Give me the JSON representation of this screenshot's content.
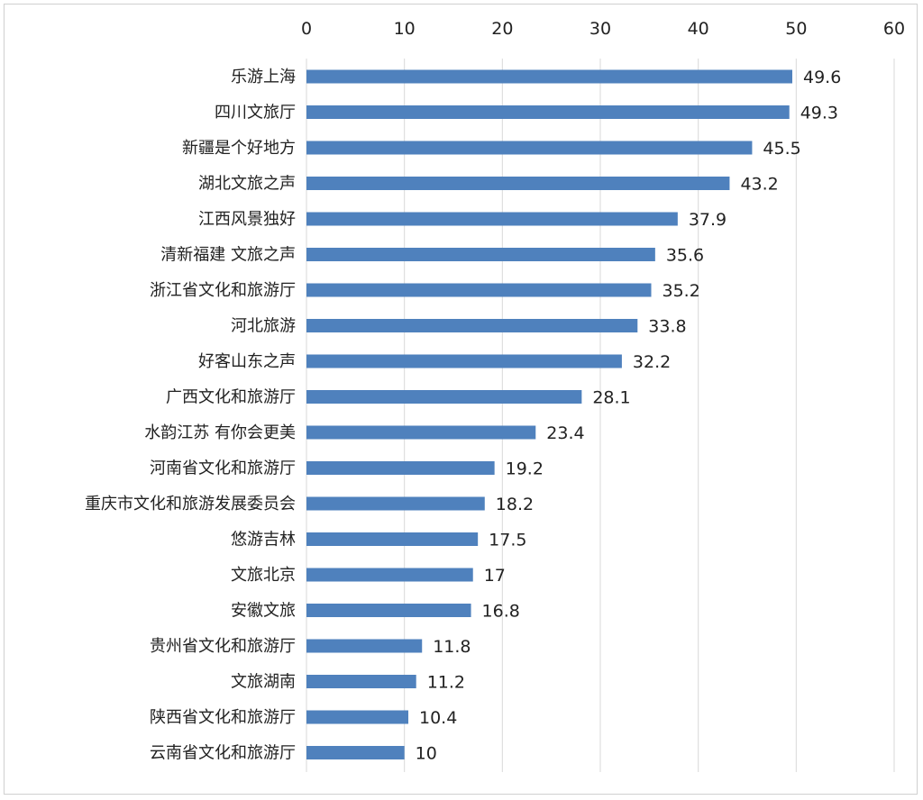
{
  "chart_data": {
    "type": "bar",
    "orientation": "horizontal",
    "title": "",
    "xlabel": "",
    "ylabel": "",
    "xlim": [
      0,
      60
    ],
    "x_ticks": [
      0,
      10,
      20,
      30,
      40,
      50,
      60
    ],
    "x_axis_position": "top",
    "grid": true,
    "legend": "none",
    "bar_color": "#4f81bd",
    "categories": [
      "乐游上海",
      "四川文旅厅",
      "新疆是个好地方",
      "湖北文旅之声",
      "江西风景独好",
      "清新福建 文旅之声",
      "浙江省文化和旅游厅",
      "河北旅游",
      "好客山东之声",
      "广西文化和旅游厅",
      "水韵江苏 有你会更美",
      "河南省文化和旅游厅",
      "重庆市文化和旅游发展委员会",
      "悠游吉林",
      "文旅北京",
      "安徽文旅",
      "贵州省文化和旅游厅",
      "文旅湖南",
      "陕西省文化和旅游厅",
      "云南省文化和旅游厅"
    ],
    "values": [
      49.6,
      49.3,
      45.5,
      43.2,
      37.9,
      35.6,
      35.2,
      33.8,
      32.2,
      28.1,
      23.4,
      19.2,
      18.2,
      17.5,
      17,
      16.8,
      11.8,
      11.2,
      10.4,
      10
    ],
    "value_labels": [
      "49.6",
      "49.3",
      "45.5",
      "43.2",
      "37.9",
      "35.6",
      "35.2",
      "33.8",
      "32.2",
      "28.1",
      "23.4",
      "19.2",
      "18.2",
      "17.5",
      "17",
      "16.8",
      "11.8",
      "11.2",
      "10.4",
      "10"
    ]
  }
}
